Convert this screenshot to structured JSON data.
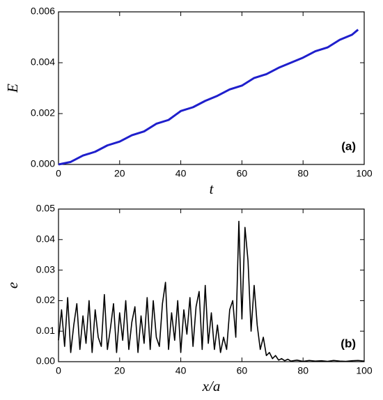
{
  "chart_data": [
    {
      "type": "line",
      "panel_label": "(a)",
      "xlabel": "t",
      "ylabel": "E",
      "color": "#1f1fcc",
      "x": [
        0,
        4,
        8,
        12,
        16,
        20,
        24,
        28,
        32,
        36,
        40,
        44,
        48,
        52,
        56,
        60,
        64,
        68,
        72,
        76,
        80,
        84,
        88,
        92,
        96,
        98
      ],
      "values": [
        0,
        0.0001,
        0.00035,
        0.0005,
        0.00075,
        0.0009,
        0.00115,
        0.0013,
        0.0016,
        0.00175,
        0.0021,
        0.00225,
        0.0025,
        0.0027,
        0.00295,
        0.0031,
        0.0034,
        0.00355,
        0.0038,
        0.004,
        0.0042,
        0.00445,
        0.0046,
        0.0049,
        0.0051,
        0.0053
      ],
      "xlim": [
        0,
        100
      ],
      "xticks": [
        0,
        20,
        40,
        60,
        80,
        100
      ],
      "ylim": [
        0,
        0.006
      ],
      "yticks": [
        {
          "value": 0,
          "label": "0.000"
        },
        0.002,
        0.004,
        0.006
      ]
    },
    {
      "type": "line",
      "panel_label": "(b)",
      "xlabel": "x/a",
      "ylabel": "e",
      "color": "#000000",
      "x": [
        0,
        1,
        2,
        3,
        4,
        5,
        6,
        7,
        8,
        9,
        10,
        11,
        12,
        13,
        14,
        15,
        16,
        17,
        18,
        19,
        20,
        21,
        22,
        23,
        24,
        25,
        26,
        27,
        28,
        29,
        30,
        31,
        32,
        33,
        34,
        35,
        36,
        37,
        38,
        39,
        40,
        41,
        42,
        43,
        44,
        45,
        46,
        47,
        48,
        49,
        50,
        51,
        52,
        53,
        54,
        55,
        56,
        57,
        58,
        59,
        60,
        61,
        62,
        63,
        64,
        65,
        66,
        67,
        68,
        69,
        70,
        71,
        72,
        73,
        74,
        75,
        76,
        78,
        80,
        82,
        84,
        86,
        88,
        90,
        92,
        94,
        96,
        98,
        100
      ],
      "values": [
        0.007,
        0.017,
        0.005,
        0.021,
        0.003,
        0.012,
        0.019,
        0.004,
        0.015,
        0.006,
        0.02,
        0.003,
        0.017,
        0.008,
        0.005,
        0.022,
        0.004,
        0.011,
        0.019,
        0.003,
        0.016,
        0.007,
        0.02,
        0.004,
        0.013,
        0.018,
        0.003,
        0.015,
        0.006,
        0.021,
        0.004,
        0.02,
        0.008,
        0.005,
        0.019,
        0.026,
        0.004,
        0.016,
        0.007,
        0.02,
        0.003,
        0.017,
        0.009,
        0.021,
        0.005,
        0.018,
        0.023,
        0.004,
        0.025,
        0.006,
        0.016,
        0.004,
        0.012,
        0.003,
        0.008,
        0.004,
        0.017,
        0.02,
        0.008,
        0.046,
        0.014,
        0.044,
        0.033,
        0.01,
        0.025,
        0.012,
        0.004,
        0.008,
        0.002,
        0.003,
        0.001,
        0.002,
        0.0005,
        0.001,
        0.0003,
        0.0008,
        0.0002,
        0.0005,
        0.0001,
        0.0004,
        0.0002,
        0.0003,
        0.0001,
        0.0004,
        0.0002,
        0.0001,
        0.0003,
        0.0004,
        0.0002
      ],
      "xlim": [
        0,
        100
      ],
      "xticks": [
        0,
        20,
        40,
        60,
        80,
        100
      ],
      "ylim": [
        0,
        0.05
      ],
      "yticks": [
        {
          "value": 0,
          "label": "0.00"
        },
        0.01,
        0.02,
        0.03,
        0.04,
        0.05
      ]
    }
  ]
}
